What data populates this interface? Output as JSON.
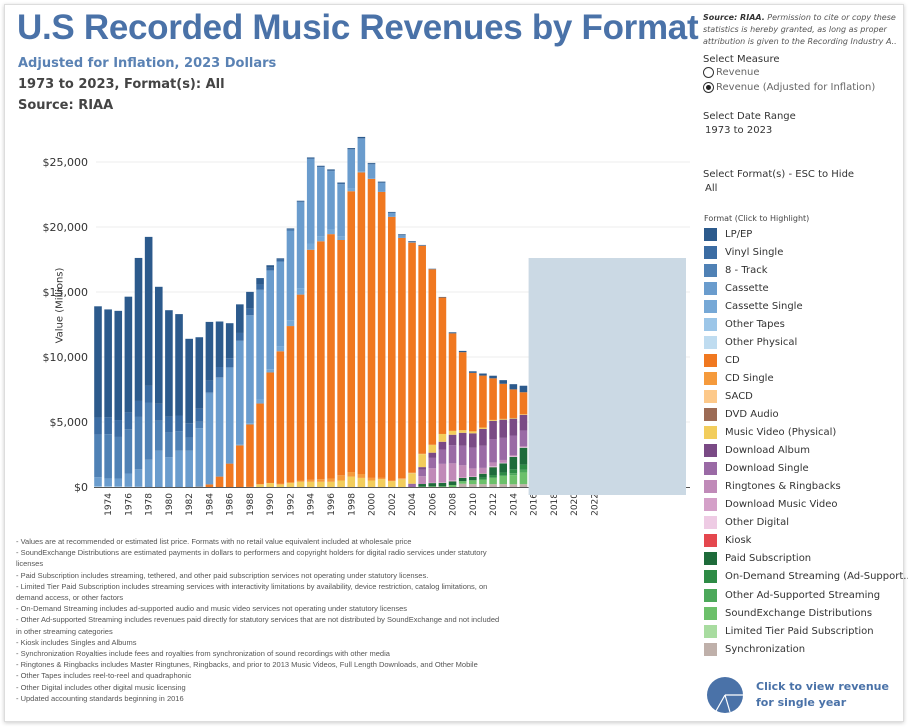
{
  "header": {
    "title": "U.S Recorded Music Revenues by Format",
    "subtitle": "Adjusted for Inflation, 2023 Dollars",
    "range_line": "1973 to 2023, Format(s): All",
    "source_line": "Source: RIAA"
  },
  "side": {
    "source_bold": "Source: RIAA.",
    "source_text": " Permission to cite or copy these statistics is hereby granted, as long as proper attribution is given to the Recording Industry A..",
    "measure_label": "Select Measure",
    "measure_options": [
      "Revenue",
      "Revenue (Adjusted for Inflation)"
    ],
    "measure_selected": 1,
    "date_label": "Select Date Range",
    "date_value": "1973 to 2023",
    "format_label": "Select Format(s) - ESC to Hide",
    "format_value": "All",
    "legend_title": "Format (Click to Highlight)",
    "pie_link": "Click to view revenue for single year"
  },
  "notes": [
    "- Values are at recommended or estimated list price. Formats with no retail value equivalent included at wholesale price",
    "- SoundExchange Distributions are estimated payments in dollars to performers and copyright holders for digital radio services under statutory licenses",
    "- Paid Subscription includes streaming, tethered, and other paid subscription services not operating under statutory licenses.",
    "- Limited Tier Paid Subscription includes streaming services with interactivity limitations by availability, device restriction, catalog limitations, on demand access, or other factors",
    "- On-Demand Streaming includes ad-supported audio and music video services not operating under statutory licenses",
    "- Other Ad-supported Streaming includes revenues paid directly for statutory services that are not distributed by SoundExchange and not included in other streaming categories",
    "- Kiosk includes Singles and Albums",
    "- Synchronization Royalties include fees and royalties from synchronization of sound recordings with other media",
    "- Ringtones & Ringbacks includes Master Ringtunes, Ringbacks, and prior to 2013 Music Videos, Full Length Downloads, and Other Mobile",
    "- Other Tapes includes reel-to-reel and quadraphonic",
    "- Other Digital includes other digital music licensing",
    "- Updated accounting standards beginning in 2016"
  ],
  "chart_data": {
    "type": "bar",
    "stacked": true,
    "title": "U.S Recorded Music Revenues by Format",
    "xlabel": "",
    "ylabel": "Value (Millions)",
    "ylim": [
      0,
      27000
    ],
    "yticks": [
      0,
      5000,
      10000,
      15000,
      20000,
      25000
    ],
    "ytick_labels": [
      "$0",
      "$5,000",
      "$10,000",
      "$15,000",
      "$20,000",
      "$25,000"
    ],
    "x_range": [
      1973,
      2023
    ],
    "xtick_labels": [
      "1974",
      "1976",
      "1978",
      "1980",
      "1982",
      "1984",
      "1986",
      "1988",
      "1990",
      "1992",
      "1994",
      "1996",
      "1998",
      "2000",
      "2002",
      "2004",
      "2006",
      "2008",
      "2010",
      "2012",
      "2014",
      "2016",
      "2018",
      "2020",
      "2022"
    ],
    "masked_years": [
      2016,
      2023
    ],
    "grid": true,
    "legend_position": "right",
    "series": [
      {
        "name": "LP/EP",
        "color": "#2c5a8c",
        "values": {
          "1973": 8560,
          "1974": 8300,
          "1975": 8400,
          "1976": 8900,
          "1977": 11000,
          "1978": 11460,
          "1979": 9000,
          "1980": 8200,
          "1981": 7800,
          "1982": 6500,
          "1983": 5500,
          "1984": 4500,
          "1985": 3500,
          "1986": 2700,
          "1987": 2200,
          "1988": 1300,
          "1989": 500,
          "1990": 200,
          "1991": 100,
          "1992": 60,
          "1993": 40,
          "1994": 60,
          "1995": 50,
          "1996": 70,
          "1997": 70,
          "1998": 80,
          "1999": 90,
          "2000": 70,
          "2001": 70,
          "2002": 60,
          "2003": 70,
          "2004": 60,
          "2005": 40,
          "2006": 40,
          "2007": 40,
          "2008": 80,
          "2009": 100,
          "2010": 120,
          "2011": 160,
          "2012": 200,
          "2013": 280,
          "2014": 400,
          "2015": 500
        }
      },
      {
        "name": "Vinyl Single",
        "color": "#3b6ca3",
        "values": {
          "1973": 1310,
          "1974": 1300,
          "1975": 1300,
          "1976": 1300,
          "1977": 1230,
          "1978": 1280,
          "1979": 1300,
          "1980": 1200,
          "1981": 1200,
          "1982": 1100,
          "1983": 1000,
          "1984": 900,
          "1985": 800,
          "1986": 700,
          "1987": 600,
          "1988": 500,
          "1989": 400,
          "1990": 200,
          "1991": 150,
          "1992": 100,
          "1993": 80,
          "1994": 60,
          "1995": 60,
          "1996": 60,
          "1997": 50,
          "1998": 40,
          "1999": 40,
          "2000": 40,
          "2001": 20,
          "2002": 20,
          "2003": 10
        }
      },
      {
        "name": "8 - Track",
        "color": "#4f81b5",
        "values": {
          "1973": 3280,
          "1974": 3400,
          "1975": 3200,
          "1976": 3400,
          "1977": 4030,
          "1978": 4400,
          "1979": 2300,
          "1980": 1900,
          "1981": 1500,
          "1982": 1000,
          "1983": 500,
          "1984": 100,
          "1985": 30
        }
      },
      {
        "name": "Cassette",
        "color": "#6a9ccd",
        "values": {
          "1973": 690,
          "1974": 600,
          "1975": 600,
          "1976": 1000,
          "1977": 1330,
          "1978": 2100,
          "1979": 2800,
          "1980": 2300,
          "1981": 2800,
          "1982": 2800,
          "1983": 4500,
          "1984": 7000,
          "1985": 7600,
          "1986": 7400,
          "1987": 8000,
          "1988": 8300,
          "1989": 8400,
          "1990": 7600,
          "1991": 6500,
          "1992": 6900,
          "1993": 6600,
          "1994": 6500,
          "1995": 5300,
          "1996": 4500,
          "1997": 4000,
          "1998": 3000,
          "1999": 2500,
          "2000": 1100,
          "2001": 700,
          "2002": 300,
          "2003": 200,
          "2004": 50,
          "2005": 20
        }
      },
      {
        "name": "Cassette Single",
        "color": "#76a8d6",
        "values": {
          "1987": 50,
          "1988": 100,
          "1989": 350,
          "1990": 250,
          "1991": 400,
          "1992": 450,
          "1993": 500,
          "1994": 480,
          "1995": 400,
          "1996": 350,
          "1997": 300,
          "1998": 200,
          "1999": 100,
          "2000": 20
        }
      },
      {
        "name": "Other Tapes",
        "color": "#9cc6e8",
        "values": {
          "1973": 60,
          "1974": 60,
          "1975": 50,
          "1976": 40,
          "1977": 30
        }
      },
      {
        "name": "Other Physical",
        "color": "#bfdcf0",
        "values": {}
      },
      {
        "name": "CD",
        "color": "#f07820",
        "values": {
          "1983": 20,
          "1984": 200,
          "1985": 800,
          "1986": 1800,
          "1987": 3200,
          "1988": 4800,
          "1989": 6200,
          "1990": 8500,
          "1991": 10200,
          "1992": 12000,
          "1993": 14300,
          "1994": 17700,
          "1995": 18300,
          "1996": 18800,
          "1997": 18100,
          "1998": 21600,
          "1999": 23200,
          "2000": 23000,
          "2001": 22000,
          "2002": 20300,
          "2003": 18500,
          "2004": 17700,
          "2005": 16000,
          "2006": 13500,
          "2007": 10500,
          "2008": 7500,
          "2009": 6000,
          "2010": 4500,
          "2011": 4000,
          "2012": 3200,
          "2013": 2700,
          "2014": 2200,
          "2015": 1700
        }
      },
      {
        "name": "CD Single",
        "color": "#f59a3c",
        "values": {
          "1988": 10,
          "1989": 20,
          "1990": 10,
          "1991": 40,
          "1992": 80,
          "1993": 100,
          "1994": 150,
          "1995": 200,
          "1996": 250,
          "1997": 400,
          "1998": 350,
          "1999": 300,
          "2000": 200,
          "2001": 100,
          "2002": 30,
          "2003": 30,
          "2004": 20,
          "2005": 20,
          "2006": 10
        }
      },
      {
        "name": "SACD",
        "color": "#fdc98a",
        "values": {
          "2003": 20,
          "2004": 20,
          "2005": 10
        }
      },
      {
        "name": "DVD Audio",
        "color": "#9c6b55",
        "values": {
          "2003": 10,
          "2004": 10
        }
      },
      {
        "name": "Music Video (Physical)",
        "color": "#f2cd5c",
        "values": {
          "1989": 200,
          "1990": 300,
          "1991": 200,
          "1992": 300,
          "1993": 400,
          "1994": 400,
          "1995": 400,
          "1996": 400,
          "1997": 500,
          "1998": 800,
          "1999": 700,
          "2000": 500,
          "2001": 600,
          "2002": 450,
          "2003": 600,
          "2004": 800,
          "2005": 1000,
          "2006": 600,
          "2007": 600,
          "2008": 300,
          "2009": 200,
          "2010": 150,
          "2011": 100,
          "2012": 70,
          "2013": 60,
          "2014": 50,
          "2015": 40
        }
      },
      {
        "name": "Download Album",
        "color": "#7a4a85",
        "values": {
          "2004": 50,
          "2005": 200,
          "2006": 400,
          "2007": 600,
          "2008": 800,
          "2009": 1000,
          "2010": 1100,
          "2011": 1300,
          "2012": 1400,
          "2013": 1400,
          "2014": 1300,
          "2015": 1200
        }
      },
      {
        "name": "Download Single",
        "color": "#9a6aa5",
        "values": {
          "2004": 200,
          "2005": 500,
          "2006": 800,
          "2007": 1100,
          "2008": 1400,
          "2009": 1500,
          "2010": 1600,
          "2011": 1700,
          "2012": 1800,
          "2013": 1700,
          "2014": 1500,
          "2015": 1200
        }
      },
      {
        "name": "Ringtones & Ringbacks",
        "color": "#c08ab8",
        "values": {
          "2005": 600,
          "2006": 1100,
          "2007": 1400,
          "2008": 1300,
          "2009": 900,
          "2010": 600,
          "2011": 400,
          "2012": 300,
          "2013": 200,
          "2014": 100,
          "2015": 80
        }
      },
      {
        "name": "Download Music Video",
        "color": "#d4a0c8",
        "values": {
          "2006": 40,
          "2007": 60,
          "2008": 80,
          "2009": 60,
          "2010": 50,
          "2011": 40,
          "2012": 30,
          "2013": 30,
          "2014": 20,
          "2015": 20
        }
      },
      {
        "name": "Other Digital",
        "color": "#eecbe4",
        "values": {
          "2012": 30,
          "2013": 30,
          "2014": 30,
          "2015": 30
        }
      },
      {
        "name": "Kiosk",
        "color": "#e4474e",
        "values": {
          "2008": 10,
          "2009": 10,
          "2010": 10,
          "2011": 10,
          "2012": 10
        }
      },
      {
        "name": "Paid Subscription",
        "color": "#1e6b3a",
        "values": {
          "2005": 200,
          "2006": 250,
          "2007": 270,
          "2008": 280,
          "2009": 250,
          "2010": 250,
          "2011": 300,
          "2012": 600,
          "2013": 700,
          "2014": 950,
          "2015": 1300
        }
      },
      {
        "name": "On-Demand Streaming (Ad-Support..",
        "color": "#2e8b45",
        "values": {
          "2011": 150,
          "2012": 200,
          "2013": 250,
          "2014": 300,
          "2015": 400
        }
      },
      {
        "name": "Other Ad-Supported Streaming",
        "color": "#4ca85a",
        "values": {
          "2014": 150,
          "2015": 200
        }
      },
      {
        "name": "SoundExchange Distributions",
        "color": "#6cc06a",
        "values": {
          "2005": 30,
          "2006": 50,
          "2007": 50,
          "2008": 150,
          "2009": 200,
          "2010": 300,
          "2011": 350,
          "2012": 500,
          "2013": 650,
          "2014": 700,
          "2015": 900
        }
      },
      {
        "name": "Limited Tier Paid Subscription",
        "color": "#a8dca0",
        "values": {}
      },
      {
        "name": "Synchronization",
        "color": "#bfb0aa",
        "values": {
          "2009": 250,
          "2010": 220,
          "2011": 220,
          "2012": 220,
          "2013": 220,
          "2014": 210,
          "2015": 220
        }
      }
    ]
  }
}
